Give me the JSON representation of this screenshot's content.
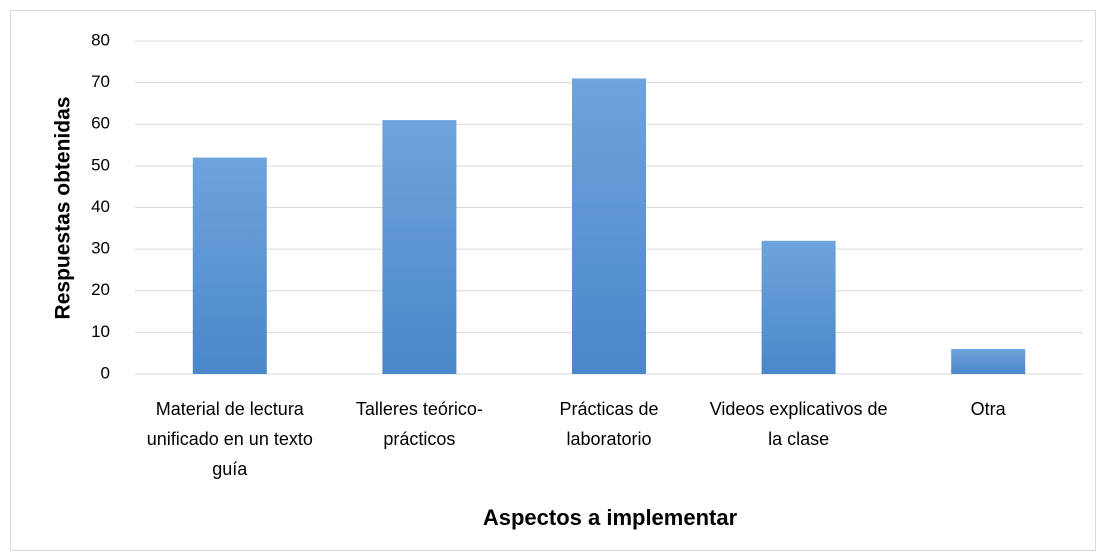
{
  "chart_data": {
    "type": "bar",
    "xlabel": "Aspectos a implementar",
    "ylabel": "Respuestas obtenidas",
    "categories": [
      "Material de lectura unificado en un texto guía",
      "Talleres teórico-prácticos",
      "Prácticas de laboratorio",
      "Videos explicativos de la clase",
      "Otra"
    ],
    "values": [
      52,
      61,
      71,
      32,
      6
    ],
    "color": "#5b9bd5",
    "ylim": [
      0,
      80
    ],
    "yticks": [
      0,
      10,
      20,
      30,
      40,
      50,
      60,
      70,
      80
    ],
    "grid": true
  }
}
